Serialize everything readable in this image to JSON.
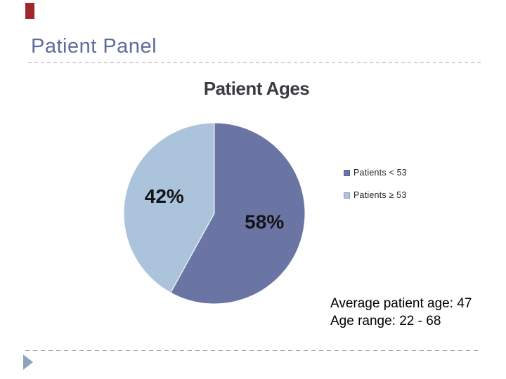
{
  "slide": {
    "title": "Patient Panel",
    "notes": {
      "line1": "Average patient age: 47",
      "line2": "Age range:  22 - 68"
    }
  },
  "chart_data": {
    "type": "pie",
    "title": "Patient Ages",
    "series": [
      {
        "label": "Patients < 53",
        "value": 58,
        "data_label": "58%",
        "color": "#6a75a3"
      },
      {
        "label": "Patients ≥ 53",
        "value": 42,
        "data_label": "42%",
        "color": "#acc4db"
      }
    ],
    "start_angle": "12-oclock",
    "direction": "clockwise",
    "legend_position": "right",
    "title_color": "#3b3b43",
    "data_label_color": "#141418"
  },
  "decor": {
    "accent_bar_color": "#a0282a",
    "footer_arrow_color": "#8ea4be",
    "divider_color": "#ababab",
    "slide_title_color": "#5f6b9b"
  }
}
